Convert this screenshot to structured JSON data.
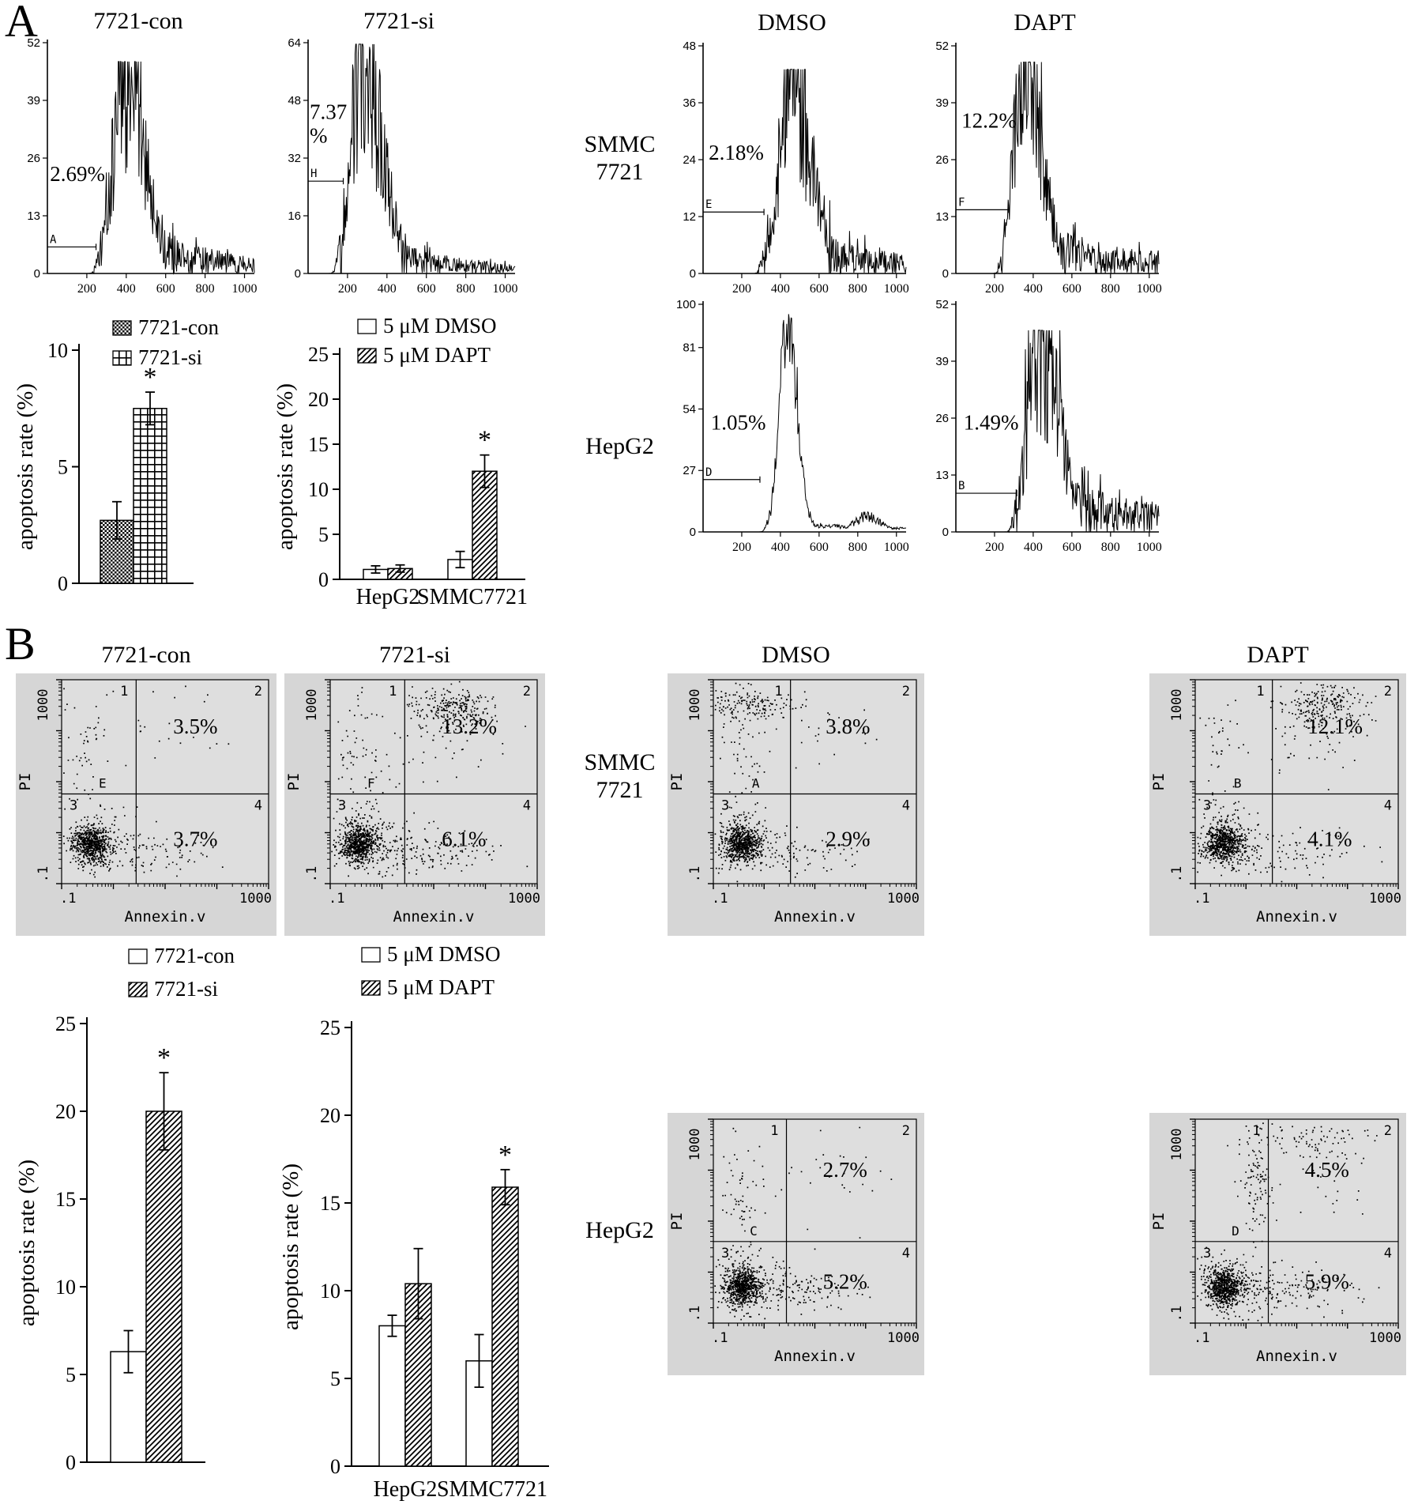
{
  "panel_a": {
    "label": "A",
    "col_headers": {
      "dmso": "DMSO",
      "dapt": "DAPT"
    },
    "row_headers": {
      "smmc_line1": "SMMC",
      "smmc_line2": "7721",
      "hepg2": "HepG2"
    }
  },
  "panel_b": {
    "label": "B",
    "col_headers": {
      "dmso": "DMSO",
      "dapt": "DAPT"
    },
    "row_headers": {
      "smmc_line1": "SMMC",
      "smmc_line2": "7721",
      "hepg2": "HepG2"
    }
  },
  "chart_data": [
    {
      "id": "hist-7721-con",
      "type": "histogram",
      "panel": "A",
      "title": "7721-con",
      "percent_label": "2.69%",
      "gate_label": "A",
      "ylim": [
        0,
        52
      ],
      "yticks": [
        0,
        13,
        26,
        39,
        52
      ],
      "xlim": [
        0,
        1023
      ],
      "xticks": [
        200,
        400,
        600,
        800,
        1000
      ],
      "peak_x": 400
    },
    {
      "id": "hist-7721-si",
      "type": "histogram",
      "panel": "A",
      "title": "7721-si",
      "percent_label": "7.37%",
      "percent_lines": [
        "7.37",
        "%"
      ],
      "gate_label": "H",
      "ylim": [
        0,
        64
      ],
      "yticks": [
        0,
        16,
        32,
        48,
        64
      ],
      "xlim": [
        0,
        1023
      ],
      "xticks": [
        200,
        400,
        600,
        800,
        1000
      ],
      "peak_x": 265
    },
    {
      "id": "hist-smmc-dmso",
      "type": "histogram",
      "panel": "A",
      "row": "SMMC 7721",
      "column": "DMSO",
      "percent_label": "2.18%",
      "gate_label": "E",
      "ylim": [
        0,
        48
      ],
      "yticks": [
        0,
        12,
        24,
        36,
        48
      ],
      "xlim": [
        0,
        1023
      ],
      "xticks": [
        200,
        400,
        600,
        800,
        1000
      ],
      "peak_x": 455
    },
    {
      "id": "hist-smmc-dapt",
      "type": "histogram",
      "panel": "A",
      "row": "SMMC 7721",
      "column": "DAPT",
      "percent_label": "12.2%",
      "gate_label": "F",
      "ylim": [
        0,
        52
      ],
      "yticks": [
        0,
        13,
        26,
        39,
        52
      ],
      "xlim": [
        0,
        1023
      ],
      "xticks": [
        200,
        400,
        600,
        800,
        1000
      ],
      "peak_x": 350
    },
    {
      "id": "hist-hepg2-dmso",
      "type": "histogram",
      "panel": "A",
      "row": "HepG2",
      "column": "DMSO",
      "percent_label": "1.05%",
      "gate_label": "D",
      "ylim": [
        0,
        100
      ],
      "yticks": [
        0,
        27,
        54,
        81,
        100
      ],
      "xlim": [
        0,
        1023
      ],
      "xticks": [
        200,
        400,
        600,
        800,
        1000
      ],
      "peak_x": 435
    },
    {
      "id": "hist-hepg2-dapt",
      "type": "histogram",
      "panel": "A",
      "row": "HepG2",
      "column": "DAPT",
      "percent_label": "1.49%",
      "gate_label": "B",
      "ylim": [
        0,
        52
      ],
      "yticks": [
        0,
        13,
        26,
        39,
        52
      ],
      "xlim": [
        0,
        1023
      ],
      "xticks": [
        200,
        400,
        600,
        800,
        1000
      ],
      "peak_x": 425
    },
    {
      "id": "bar-a-left",
      "type": "bar",
      "panel": "A",
      "ylabel": "apoptosis rate  (%)",
      "ylim": [
        0,
        10
      ],
      "yticks": [
        0,
        5,
        10
      ],
      "categories": [
        ""
      ],
      "series": [
        {
          "name": "7721-con",
          "pattern": "checker",
          "values": [
            2.7
          ],
          "errors": [
            0.8
          ],
          "sig": [
            null
          ]
        },
        {
          "name": "7721-si",
          "pattern": "grid",
          "values": [
            7.5
          ],
          "errors": [
            0.7
          ],
          "sig": [
            "*"
          ]
        }
      ]
    },
    {
      "id": "bar-a-right",
      "type": "bar",
      "panel": "A",
      "ylabel": "apoptosis rate (%)",
      "ylim": [
        0,
        25
      ],
      "yticks": [
        0,
        5,
        10,
        15,
        20,
        25
      ],
      "categories": [
        "HepG2",
        "SMMC7721"
      ],
      "series": [
        {
          "name": "5 μM DMSO",
          "pattern": "white",
          "values": [
            1.1,
            2.2
          ],
          "errors": [
            0.4,
            0.9
          ],
          "sig": [
            null,
            null
          ]
        },
        {
          "name": "5 μM DAPT",
          "pattern": "hatch",
          "values": [
            1.2,
            12.0
          ],
          "errors": [
            0.4,
            1.8
          ],
          "sig": [
            null,
            "*"
          ]
        }
      ]
    },
    {
      "id": "scat-7721-con",
      "type": "scatter",
      "panel": "B",
      "title": "7721-con",
      "xlabel": "Annexin.v",
      "ylabel": "PI",
      "x_tick_labels": [
        ".1",
        "1000"
      ],
      "y_tick_labels": [
        ".1",
        "1000"
      ],
      "quadrant_labels": [
        "1",
        "2",
        "3",
        "4"
      ],
      "gate_label": "E",
      "q2_percent": "3.5%",
      "q4_percent": "3.7%"
    },
    {
      "id": "scat-7721-si",
      "type": "scatter",
      "panel": "B",
      "title": "7721-si",
      "xlabel": "Annexin.v",
      "ylabel": "PI",
      "x_tick_labels": [
        ".1",
        "1000"
      ],
      "y_tick_labels": [
        ".1",
        "1000"
      ],
      "quadrant_labels": [
        "1",
        "2",
        "3",
        "4"
      ],
      "gate_label": "F",
      "q2_percent": "13.2%",
      "q4_percent": "6.1%"
    },
    {
      "id": "scat-smmc-dmso",
      "type": "scatter",
      "panel": "B",
      "row": "SMMC 7721",
      "column": "DMSO",
      "xlabel": "Annexin.v",
      "ylabel": "PI",
      "x_tick_labels": [
        ".1",
        "1000"
      ],
      "y_tick_labels": [
        ".1",
        "1000"
      ],
      "quadrant_labels": [
        "1",
        "2",
        "3",
        "4"
      ],
      "gate_label": "A",
      "q2_percent": "3.8%",
      "q4_percent": "2.9%"
    },
    {
      "id": "scat-smmc-dapt",
      "type": "scatter",
      "panel": "B",
      "row": "SMMC 7721",
      "column": "DAPT",
      "xlabel": "Annexin.v",
      "ylabel": "PI",
      "x_tick_labels": [
        ".1",
        "1000"
      ],
      "y_tick_labels": [
        ".1",
        "1000"
      ],
      "quadrant_labels": [
        "1",
        "2",
        "3",
        "4"
      ],
      "gate_label": "B",
      "q2_percent": "12.1%",
      "q4_percent": "4.1%"
    },
    {
      "id": "scat-hepg2-dmso",
      "type": "scatter",
      "panel": "B",
      "row": "HepG2",
      "column": "DMSO",
      "xlabel": "Annexin.v",
      "ylabel": "PI",
      "x_tick_labels": [
        ".1",
        "1000"
      ],
      "y_tick_labels": [
        ".1",
        "1000"
      ],
      "quadrant_labels": [
        "1",
        "2",
        "3",
        "4"
      ],
      "gate_label": "C",
      "q2_percent": "2.7%",
      "q4_percent": "5.2%"
    },
    {
      "id": "scat-hepg2-dapt",
      "type": "scatter",
      "panel": "B",
      "row": "HepG2",
      "column": "DAPT",
      "xlabel": "Annexin.v",
      "ylabel": "PI",
      "x_tick_labels": [
        ".1",
        "1000"
      ],
      "y_tick_labels": [
        ".1",
        "1000"
      ],
      "quadrant_labels": [
        "1",
        "2",
        "3",
        "4"
      ],
      "gate_label": "D",
      "q2_percent": "4.5%",
      "q4_percent": "5.9%"
    },
    {
      "id": "bar-b-left",
      "type": "bar",
      "panel": "B",
      "ylabel": "apoptosis rate  (%)",
      "ylim": [
        0,
        25
      ],
      "yticks": [
        0,
        5,
        10,
        15,
        20,
        25
      ],
      "categories": [
        ""
      ],
      "series": [
        {
          "name": "7721-con",
          "pattern": "white",
          "values": [
            6.3
          ],
          "errors": [
            1.2
          ],
          "sig": [
            null
          ]
        },
        {
          "name": "7721-si",
          "pattern": "hatch",
          "values": [
            20.0
          ],
          "errors": [
            2.2
          ],
          "sig": [
            "*"
          ]
        }
      ]
    },
    {
      "id": "bar-b-right",
      "type": "bar",
      "panel": "B",
      "ylabel": "apoptosis rate (%)",
      "ylim": [
        0,
        25
      ],
      "yticks": [
        0,
        5,
        10,
        15,
        20,
        25
      ],
      "categories": [
        "HepG2",
        "SMMC7721"
      ],
      "series": [
        {
          "name": "5 μM DMSO",
          "pattern": "white",
          "values": [
            8.0,
            6.0
          ],
          "errors": [
            0.6,
            1.5
          ],
          "sig": [
            null,
            null
          ]
        },
        {
          "name": "5 μM DAPT",
          "pattern": "hatch",
          "values": [
            10.4,
            15.9
          ],
          "errors": [
            2.0,
            1.0
          ],
          "sig": [
            null,
            "*"
          ]
        }
      ]
    }
  ]
}
